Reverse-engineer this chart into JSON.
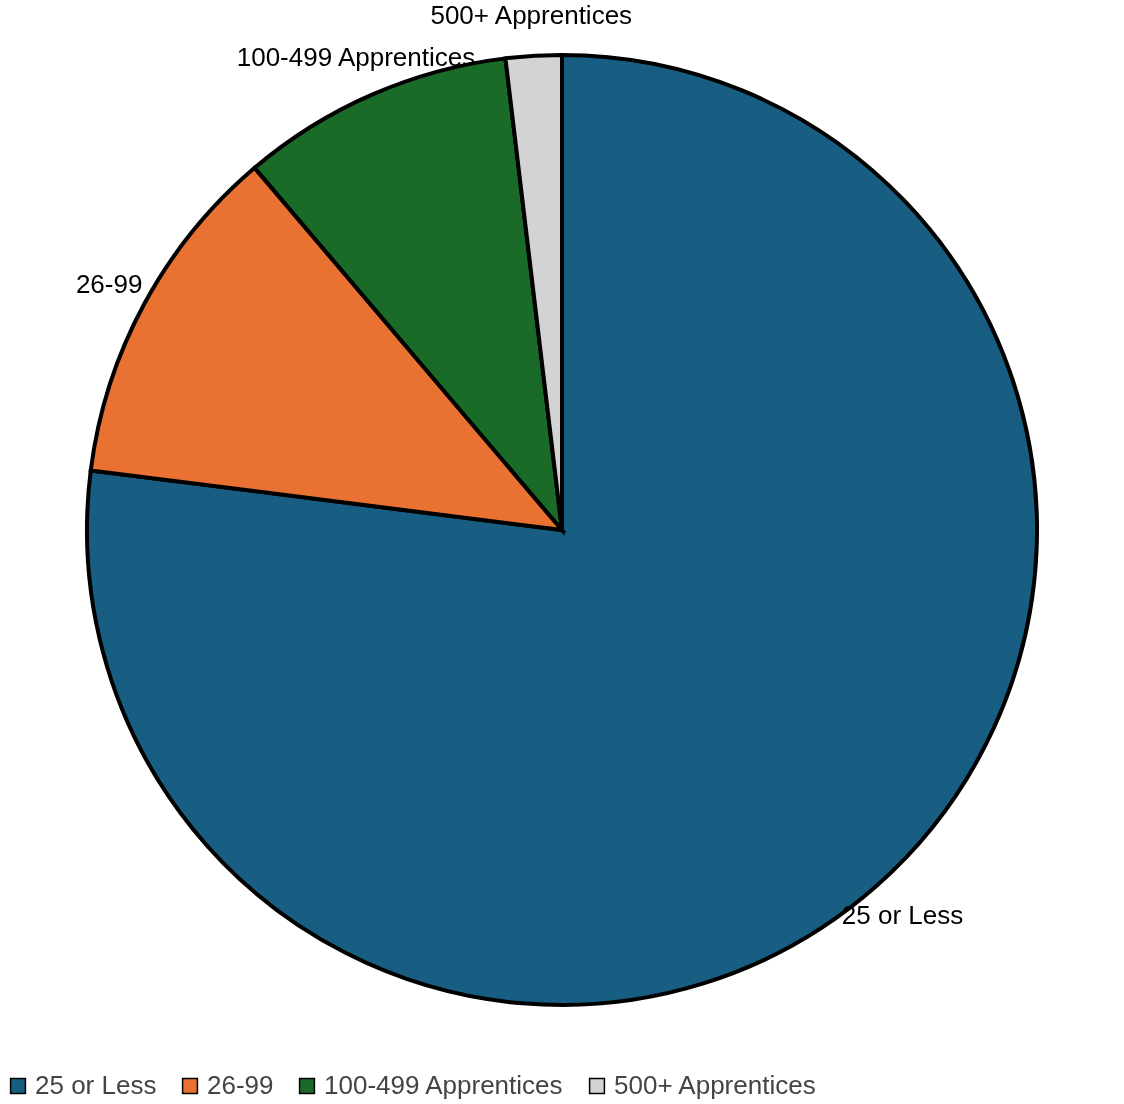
{
  "chart_data": {
    "type": "pie",
    "categories": [
      "25 or Less",
      "26-99",
      "100-499 Apprentices",
      "500+ Apprentices"
    ],
    "values": [
      77.0,
      11.8,
      9.3,
      1.9
    ],
    "colors": [
      "#175e82",
      "#e97132",
      "#1b6b28",
      "#d3d3d3"
    ],
    "legend": "bottom"
  }
}
